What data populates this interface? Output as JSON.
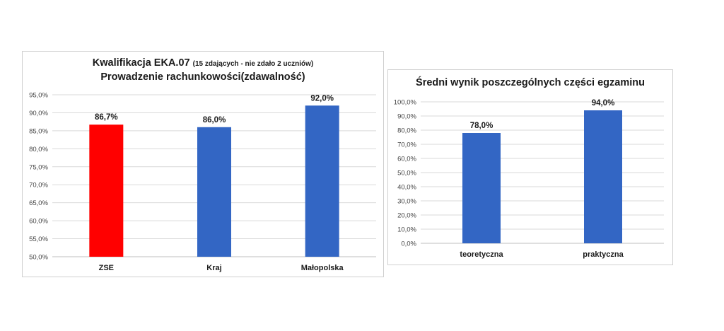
{
  "chart_data": [
    {
      "type": "bar",
      "title_main": "Kwalifikacja EKA.07",
      "title_note": "(15 zdających - nie zdało 2 uczniów)",
      "subtitle": "Prowadzenie rachunkowości(zdawalność)",
      "categories": [
        "ZSE",
        "Kraj",
        "Małopolska"
      ],
      "values": [
        86.7,
        86.0,
        92.0
      ],
      "value_labels": [
        "86,7%",
        "86,0%",
        "92,0%"
      ],
      "colors": [
        "#ff0000",
        "#3366c4",
        "#3366c4"
      ],
      "ylim": [
        50,
        95
      ],
      "yticks": [
        "50,0%",
        "55,0%",
        "60,0%",
        "65,0%",
        "70,0%",
        "75,0%",
        "80,0%",
        "85,0%",
        "90,0%",
        "95,0%"
      ],
      "grid": true
    },
    {
      "type": "bar",
      "title": "Średni wynik poszczególnych części egzaminu",
      "categories": [
        "teoretyczna",
        "praktyczna"
      ],
      "values": [
        78.0,
        94.0
      ],
      "value_labels": [
        "78,0%",
        "94,0%"
      ],
      "colors": [
        "#3366c4",
        "#3366c4"
      ],
      "ylim": [
        0,
        100
      ],
      "yticks": [
        "0,0%",
        "10,0%",
        "20,0%",
        "30,0%",
        "40,0%",
        "50,0%",
        "60,0%",
        "70,0%",
        "80,0%",
        "90,0%",
        "100,0%"
      ],
      "grid": true
    }
  ]
}
